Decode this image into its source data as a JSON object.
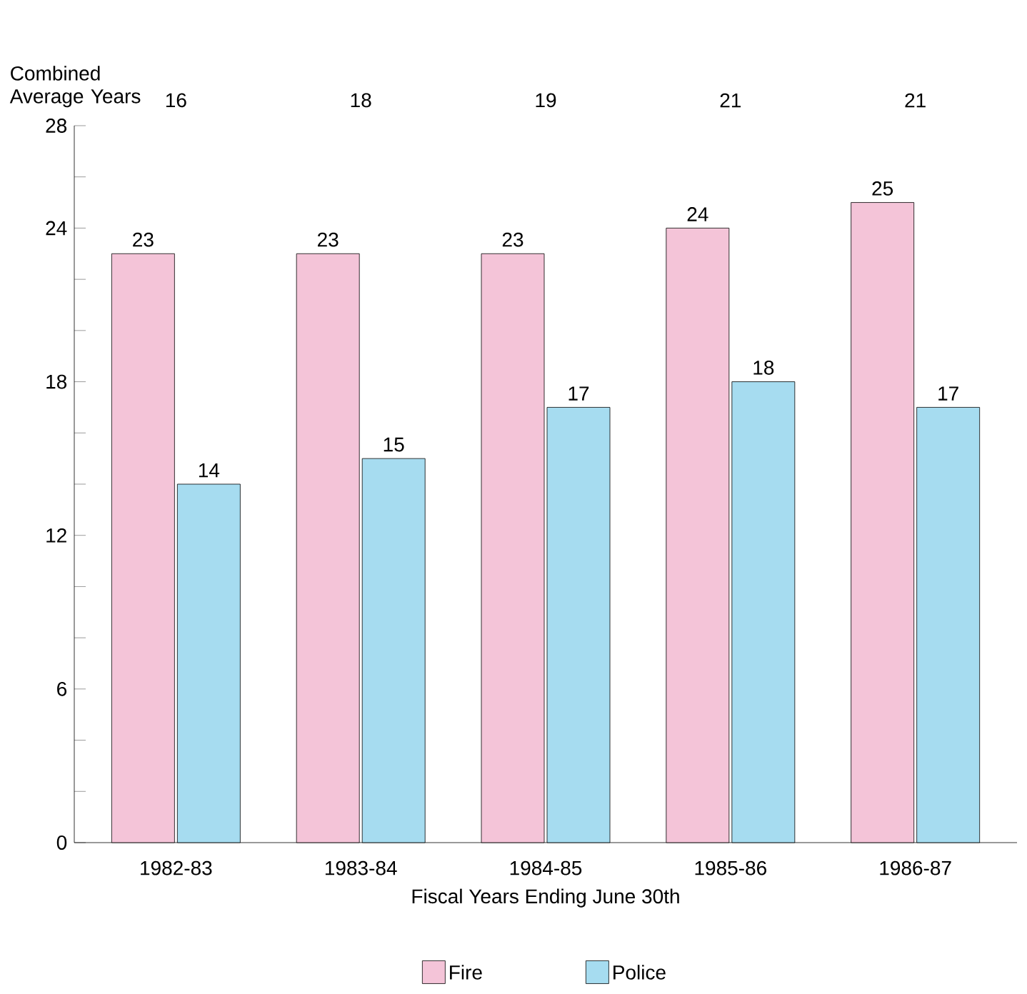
{
  "chart_data": {
    "type": "bar",
    "xlabel": "Fiscal Years Ending June 30th",
    "categories": [
      "1982-83",
      "1983-84",
      "1984-85",
      "1985-86",
      "1986-87"
    ],
    "series": [
      {
        "name": "Fire",
        "color": "#f4c4d8",
        "values": [
          23,
          23,
          23,
          24,
          25
        ]
      },
      {
        "name": "Police",
        "color": "#a6dcf0",
        "values": [
          14,
          15,
          17,
          18,
          17
        ]
      }
    ],
    "ylim": [
      0,
      28
    ],
    "yticks": [
      0,
      {
        "value": 2,
        "label": null
      },
      {
        "value": 4,
        "label": null
      },
      6,
      {
        "value": 8,
        "label": null
      },
      {
        "value": 10,
        "label": null
      },
      12,
      {
        "value": 14,
        "label": null
      },
      {
        "value": 16,
        "label": null
      },
      18,
      {
        "value": 20,
        "label": null
      },
      {
        "value": 22,
        "label": null
      },
      24,
      {
        "value": 26,
        "label": null
      },
      28
    ],
    "data_labels": true,
    "legend": "bottom",
    "annotations": [
      "Combined Average Years",
      "16",
      "18",
      "19",
      "21",
      "21"
    ]
  }
}
